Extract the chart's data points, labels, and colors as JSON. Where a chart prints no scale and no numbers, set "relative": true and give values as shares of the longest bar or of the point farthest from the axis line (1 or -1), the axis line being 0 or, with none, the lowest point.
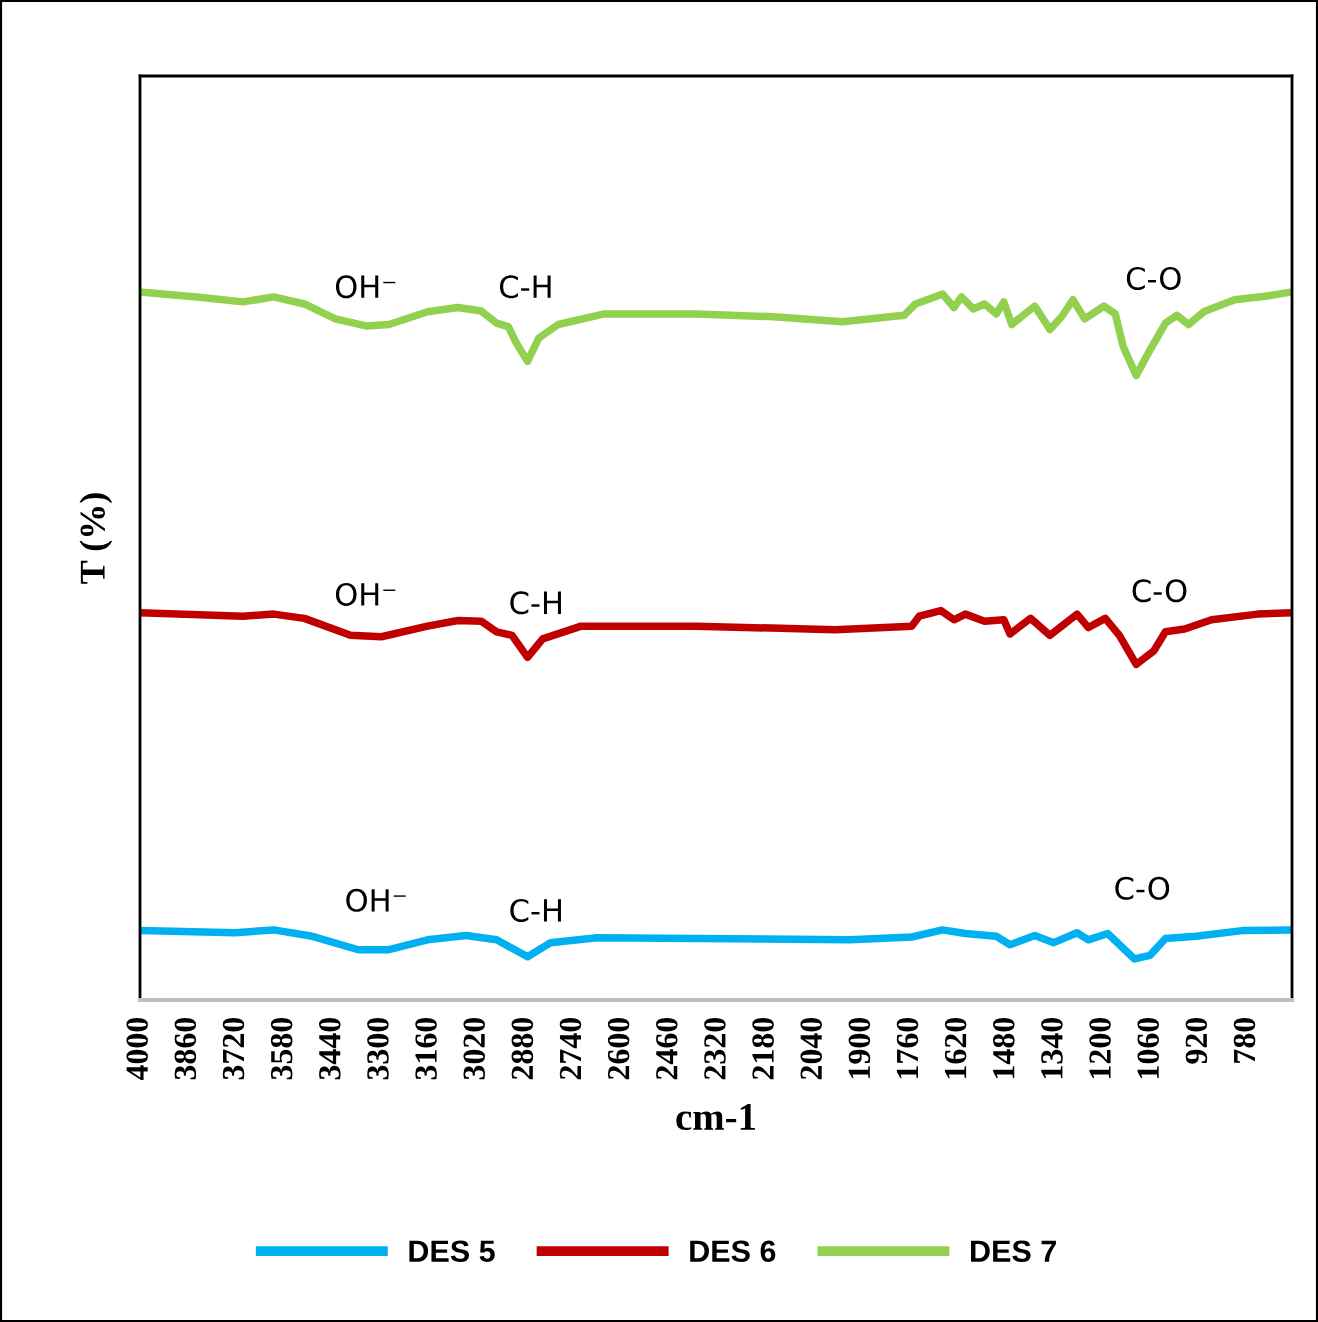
{
  "chart_data": {
    "type": "line",
    "relative": true,
    "xlabel": "cm-1",
    "ylabel": "T (%)",
    "legend": "bottom",
    "grid": false,
    "marker": "none",
    "line_style": "solid",
    "xlim": [
      4000,
      650
    ],
    "xticks": [
      4000,
      3860,
      3720,
      3580,
      3440,
      3300,
      3160,
      3020,
      2880,
      2740,
      2600,
      2460,
      2320,
      2180,
      2040,
      1900,
      1760,
      1620,
      1480,
      1340,
      1200,
      1060,
      920,
      780
    ],
    "series": [
      {
        "name": "DES 5",
        "color": "#00b0f0",
        "x": [
          4000,
          3723,
          3611,
          3499,
          3365,
          3276,
          3164,
          3052,
          2963,
          2873,
          2806,
          2672,
          1935,
          1756,
          1666,
          1600,
          1510,
          1470,
          1398,
          1343,
          1275,
          1242,
          1186,
          1108,
          1063,
          1018,
          929,
          795,
          650
        ],
        "values": [
          0.098,
          0.095,
          0.099,
          0.09,
          0.071,
          0.071,
          0.085,
          0.091,
          0.085,
          0.061,
          0.081,
          0.088,
          0.085,
          0.089,
          0.099,
          0.094,
          0.09,
          0.078,
          0.091,
          0.081,
          0.095,
          0.085,
          0.094,
          0.058,
          0.063,
          0.087,
          0.09,
          0.098,
          0.099
        ]
      },
      {
        "name": "DES 6",
        "color": "#c00000",
        "x": [
          4000,
          3700,
          3611,
          3522,
          3388,
          3298,
          3164,
          3075,
          3008,
          2963,
          2918,
          2873,
          2829,
          2717,
          2382,
          1979,
          1756,
          1734,
          1671,
          1633,
          1600,
          1544,
          1488,
          1470,
          1410,
          1354,
          1309,
          1275,
          1242,
          1193,
          1152,
          1103,
          1052,
          1018,
          962,
          884,
          750,
          650
        ],
        "values": [
          0.547,
          0.542,
          0.545,
          0.539,
          0.515,
          0.513,
          0.528,
          0.536,
          0.535,
          0.52,
          0.515,
          0.484,
          0.51,
          0.528,
          0.528,
          0.523,
          0.528,
          0.542,
          0.55,
          0.537,
          0.545,
          0.535,
          0.537,
          0.517,
          0.539,
          0.515,
          0.532,
          0.545,
          0.526,
          0.539,
          0.515,
          0.474,
          0.493,
          0.52,
          0.524,
          0.537,
          0.545,
          0.547
        ]
      },
      {
        "name": "DES 7",
        "color": "#92d050",
        "x": [
          4000,
          3835,
          3700,
          3611,
          3522,
          3432,
          3343,
          3276,
          3164,
          3075,
          3008,
          2963,
          2929,
          2907,
          2873,
          2840,
          2784,
          2650,
          2382,
          2158,
          1957,
          1778,
          1745,
          1666,
          1633,
          1611,
          1577,
          1544,
          1510,
          1488,
          1465,
          1432,
          1398,
          1354,
          1320,
          1287,
          1253,
          1197,
          1164,
          1141,
          1103,
          1063,
          1018,
          985,
          951,
          907,
          817,
          728,
          650
        ],
        "values": [
          1.0,
          0.993,
          0.986,
          0.993,
          0.983,
          0.962,
          0.952,
          0.954,
          0.972,
          0.978,
          0.973,
          0.956,
          0.951,
          0.929,
          0.902,
          0.935,
          0.954,
          0.969,
          0.969,
          0.965,
          0.958,
          0.967,
          0.983,
          0.997,
          0.978,
          0.993,
          0.976,
          0.983,
          0.969,
          0.986,
          0.954,
          0.967,
          0.98,
          0.947,
          0.965,
          0.989,
          0.962,
          0.98,
          0.969,
          0.923,
          0.882,
          0.918,
          0.956,
          0.967,
          0.954,
          0.972,
          0.989,
          0.994,
          1.0
        ]
      }
    ],
    "annotations": [
      "OH⁻",
      "C-H",
      "C-O",
      "OH⁻",
      "C-H",
      "C-O",
      "OH⁻",
      "C-H",
      "C-O"
    ]
  }
}
